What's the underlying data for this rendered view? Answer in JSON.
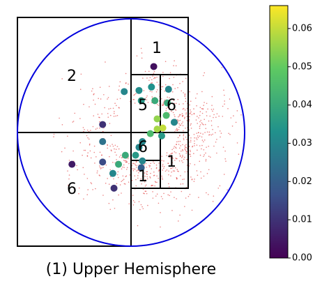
{
  "chart_data": {
    "type": "scatter",
    "title": "(1) Upper Hemisphere",
    "xlim": [
      -1,
      1
    ],
    "ylim": [
      -1,
      1
    ],
    "circle_color": "#0000dd",
    "density_color": "#e03030",
    "region_labels": [
      "1",
      "2",
      "5",
      "6",
      "6",
      "1",
      "1",
      "6"
    ],
    "series": [
      {
        "x": [
          0.2,
          -0.06,
          0.07,
          0.18,
          0.33,
          0.09,
          0.21,
          0.32,
          0.31,
          0.23,
          0.28,
          0.23,
          0.38,
          0.17,
          0.27,
          0.1,
          0.07,
          -0.05,
          0.04,
          0.1,
          -0.11,
          -0.25,
          -0.25,
          -0.25,
          -0.16,
          0.09,
          -0.52,
          -0.15
        ],
        "values": [
          0.58,
          0.36,
          0.37,
          0.4,
          0.38,
          0.28,
          0.28,
          0.26,
          0.15,
          0.12,
          0.04,
          0.03,
          0.09,
          -0.01,
          -0.03,
          -0.08,
          -0.13,
          -0.2,
          -0.2,
          -0.25,
          -0.28,
          0.07,
          -0.08,
          -0.26,
          -0.36,
          -0.31,
          -0.28,
          -0.49
        ],
        "color_values": [
          0.003,
          0.03,
          0.032,
          0.033,
          0.03,
          0.035,
          0.04,
          0.04,
          0.045,
          0.055,
          0.06,
          0.057,
          0.03,
          0.045,
          0.035,
          0.03,
          0.03,
          0.04,
          0.035,
          0.03,
          0.04,
          0.01,
          0.025,
          0.015,
          0.03,
          0.02,
          0.005,
          0.01
        ]
      }
    ],
    "clim": [
      0,
      0.066
    ],
    "cticks": [
      {
        "value": 0,
        "label": "0.00"
      },
      {
        "value": 0.01,
        "label": "0.01"
      },
      {
        "value": 0.02,
        "label": "0.02"
      },
      {
        "value": 0.03,
        "label": "0.03"
      },
      {
        "value": 0.04,
        "label": "0.04"
      },
      {
        "value": 0.05,
        "label": "0.05"
      },
      {
        "value": 0.06,
        "label": "0.06"
      }
    ]
  }
}
